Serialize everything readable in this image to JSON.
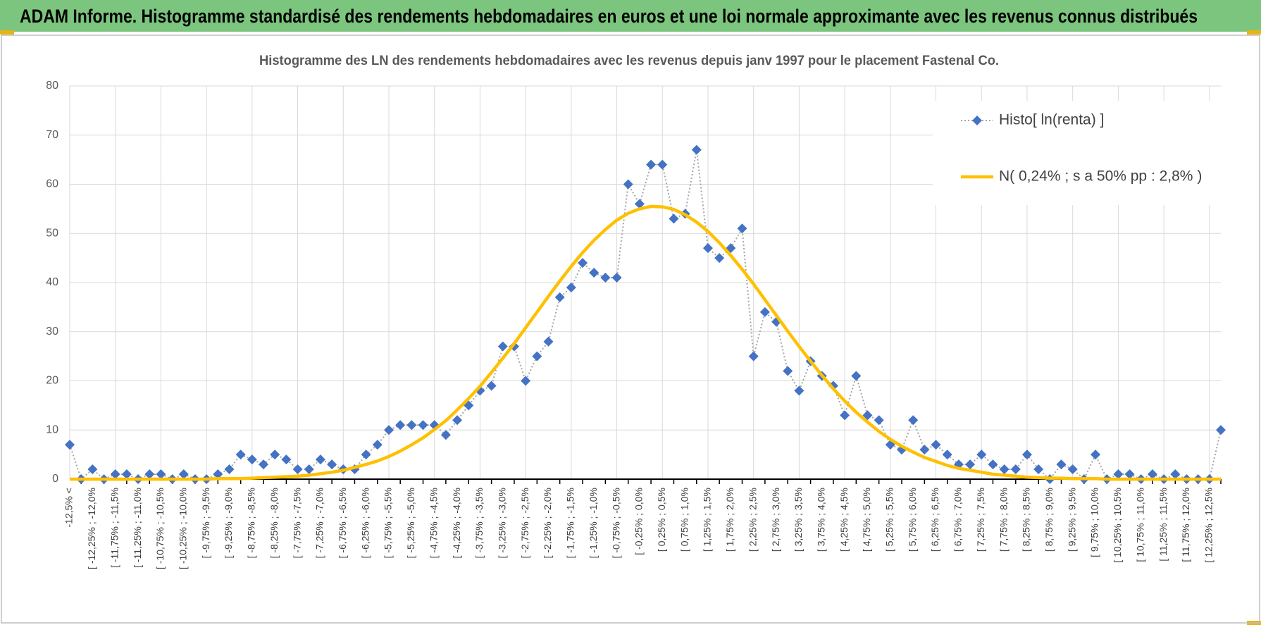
{
  "header": {
    "title": "ADAM Informe. Histogramme standardisé des rendements hebdomadaires en euros et une loi normale approximante avec les revenus connus distribués"
  },
  "chart_data": {
    "type": "line",
    "title": "Histogramme  des LN des rendements hebdomadaires avec les revenus depuis janv 1997 pour le placement Fastenal Co.",
    "categories": [
      "-12,5% <",
      null,
      "[ -12,25% ; -12,0%",
      null,
      "[ -11,75% ; -11,5%",
      null,
      "[ -11,25% ; -11,0%",
      null,
      "[ -10,75% ; -10,5%",
      null,
      "[ -10,25% ; -10,0%",
      null,
      "[ -9,75% ; -9,5%",
      null,
      "[ -9,25% ; -9,0%",
      null,
      "[ -8,75% ; -8,5%",
      null,
      "[ -8,25% ; -8,0%",
      null,
      "[ -7,75% ; -7,5%",
      null,
      "[ -7,25% ; -7,0%",
      null,
      "[ -6,75% ; -6,5%",
      null,
      "[ -6,25% ; -6,0%",
      null,
      "[ -5,75% ; -5,5%",
      null,
      "[ -5,25% ; -5,0%",
      null,
      "[ -4,75% ; -4,5%",
      null,
      "[ -4,25% ; -4,0%",
      null,
      "[ -3,75% ; -3,5%",
      null,
      "[ -3,25% ; -3,0%",
      null,
      "[ -2,75% ; -2,5%",
      null,
      "[ -2,25% ; -2,0%",
      null,
      "[ -1,75% ; -1,5%",
      null,
      "[ -1,25% ; -1,0%",
      null,
      "[ -0,75% ; -0,5%",
      null,
      "[ -0,25% ; 0,0%",
      null,
      "[ 0,25% ; 0,5%",
      null,
      "[ 0,75% ; 1,0%",
      null,
      "[ 1,25% ; 1,5%",
      null,
      "[ 1,75% ; 2,0%",
      null,
      "[ 2,25% ; 2,5%",
      null,
      "[ 2,75% ; 3,0%",
      null,
      "[ 3,25% ; 3,5%",
      null,
      "[ 3,75% ; 4,0%",
      null,
      "[ 4,25% ; 4,5%",
      null,
      "[ 4,75% ; 5,0%",
      null,
      "[ 5,25% ; 5,5%",
      null,
      "[ 5,75% ; 6,0%",
      null,
      "[ 6,25% ; 6,5%",
      null,
      "[ 6,75% ; 7,0%",
      null,
      "[ 7,25% ; 7,5%",
      null,
      "[ 7,75% ; 8,0%",
      null,
      "[ 8,25% ; 8,5%",
      null,
      "[ 8,75% ; 9,0%",
      null,
      "[ 9,25% ; 9,5%",
      null,
      "[ 9,75% ; 10,0%",
      null,
      "[ 10,25% ; 10,5%",
      null,
      "[ 10,75% ; 11,0%",
      null,
      "[ 11,25% ; 11,5%",
      null,
      "[ 11,75% ; 12,0%",
      null,
      "[ 12,25% ; 12,5%",
      null
    ],
    "series": [
      {
        "name": "Histo[ ln(renta) ]",
        "color": "#4472c4",
        "line_color": "#a5a5a5",
        "marker": "diamond",
        "values": [
          7,
          0,
          2,
          0,
          1,
          1,
          0,
          1,
          1,
          0,
          1,
          0,
          0,
          1,
          2,
          5,
          4,
          3,
          5,
          4,
          2,
          2,
          4,
          3,
          2,
          2,
          5,
          7,
          10,
          11,
          11,
          11,
          11,
          9,
          12,
          15,
          18,
          19,
          27,
          27,
          20,
          25,
          28,
          37,
          39,
          44,
          42,
          41,
          41,
          60,
          56,
          64,
          64,
          53,
          54,
          67,
          47,
          45,
          47,
          51,
          25,
          34,
          32,
          22,
          18,
          24,
          21,
          19,
          13,
          21,
          13,
          12,
          7,
          6,
          12,
          6,
          7,
          5,
          3,
          3,
          5,
          3,
          2,
          2,
          5,
          2,
          0,
          3,
          2,
          0,
          5,
          0,
          1,
          1,
          0,
          1,
          0,
          1,
          0,
          0,
          0,
          10
        ]
      },
      {
        "name": "N( 0,24% ; s a 50% pp : 2,8% )",
        "color": "#ffc000",
        "marker": "none",
        "values": [
          0,
          0,
          0,
          0,
          0,
          0,
          0,
          0,
          0,
          0,
          0,
          0,
          0,
          0.1,
          0.1,
          0.1,
          0.2,
          0.3,
          0.4,
          0.5,
          0.6,
          0.8,
          1.1,
          1.4,
          1.8,
          2.4,
          3.0,
          3.7,
          4.6,
          5.7,
          7.0,
          8.4,
          10.1,
          11.9,
          14.1,
          16.4,
          18.9,
          21.7,
          24.6,
          27.6,
          30.8,
          34.0,
          37.2,
          40.3,
          43.3,
          46.1,
          48.6,
          50.8,
          52.7,
          54.1,
          55.0,
          55.5,
          55.4,
          54.9,
          53.8,
          52.3,
          50.4,
          48.1,
          45.5,
          42.7,
          39.7,
          36.5,
          33.3,
          30.1,
          27.0,
          24.0,
          21.1,
          18.4,
          15.9,
          13.6,
          11.6,
          9.7,
          8.1,
          6.7,
          5.5,
          4.4,
          3.6,
          2.8,
          2.2,
          1.8,
          1.4,
          1.0,
          0.8,
          0.6,
          0.4,
          0.3,
          0.2,
          0.2,
          0.1,
          0.1,
          0.1,
          0,
          0,
          0,
          0,
          0,
          0,
          0,
          0,
          0,
          0,
          0
        ]
      }
    ],
    "ylim": [
      0,
      80
    ],
    "yticks": [
      0,
      10,
      20,
      30,
      40,
      50,
      60,
      70,
      80
    ],
    "grid": true,
    "legend": "upper right"
  }
}
